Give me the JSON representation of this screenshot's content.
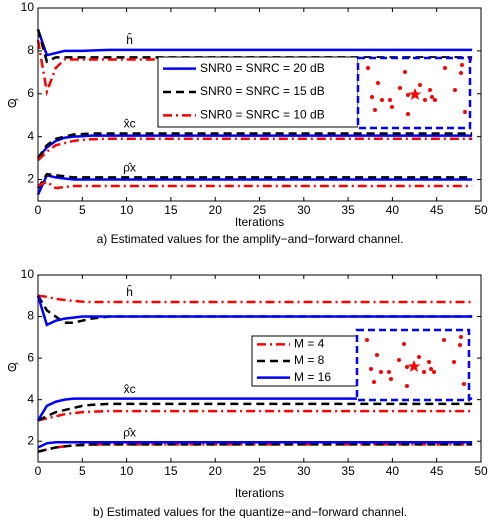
{
  "chart_data": [
    {
      "type": "line",
      "xlabel": "Iterations",
      "ylabel": "Θ̂",
      "caption": "a) Estimated values for the amplify−and−forward channel.",
      "x": [
        0,
        1,
        2,
        3,
        4,
        5,
        6,
        8,
        10,
        15,
        20,
        25,
        30,
        35,
        40,
        45,
        49
      ],
      "xlim": [
        0,
        50
      ],
      "ylim": [
        1,
        10
      ],
      "xticks": [
        0,
        5,
        10,
        15,
        20,
        25,
        30,
        35,
        40,
        45,
        50
      ],
      "yticks": [
        2,
        4,
        6,
        8,
        10
      ],
      "curve_labels": [
        "ĥ",
        "x̂c",
        "ρ̂x"
      ],
      "series": [
        {
          "name": "SNR0 = SNRC = 20 dB",
          "color": "#0000ff",
          "linestyle": "solid",
          "curves": [
            {
              "values": [
                9,
                7.8,
                7.9,
                8.0,
                8.0,
                8.0,
                8.02,
                8.05,
                8.05,
                8.05,
                8.05,
                8.05,
                8.05,
                8.05,
                8.05,
                8.05,
                8.05
              ]
            },
            {
              "values": [
                3,
                3.5,
                3.8,
                3.95,
                4.0,
                4.02,
                4.05,
                4.05,
                4.05,
                4.05,
                4.05,
                4.05,
                4.05,
                4.05,
                4.05,
                4.05,
                4.05
              ]
            },
            {
              "values": [
                1.3,
                2.2,
                2.1,
                2.05,
                2.0,
                2.0,
                2.0,
                2.0,
                2.0,
                2.0,
                2.0,
                2.0,
                2.0,
                2.0,
                2.0,
                2.0,
                2.0
              ]
            }
          ]
        },
        {
          "name": "SNR0 = SNRC = 15 dB",
          "color": "#000000",
          "linestyle": "dashed",
          "curves": [
            {
              "values": [
                9,
                7.5,
                7.7,
                7.7,
                7.7,
                7.7,
                7.7,
                7.7,
                7.7,
                7.7,
                7.7,
                7.7,
                7.7,
                7.7,
                7.7,
                7.7,
                7.7
              ]
            },
            {
              "values": [
                3,
                3.6,
                3.9,
                4.0,
                4.1,
                4.12,
                4.15,
                4.15,
                4.15,
                4.15,
                4.15,
                4.15,
                4.15,
                4.15,
                4.15,
                4.15,
                4.15
              ]
            },
            {
              "values": [
                1.6,
                2.25,
                2.2,
                2.15,
                2.1,
                2.1,
                2.1,
                2.1,
                2.1,
                2.1,
                2.1,
                2.1,
                2.1,
                2.1,
                2.1,
                2.1,
                2.1
              ]
            }
          ]
        },
        {
          "name": "SNR0 = SNRC = 10 dB",
          "color": "#ff0000",
          "linestyle": "dashdot",
          "curves": [
            {
              "values": [
                8.5,
                6.1,
                7.2,
                7.6,
                7.6,
                7.6,
                7.6,
                7.6,
                7.6,
                7.6,
                7.6,
                7.6,
                7.6,
                7.6,
                7.6,
                7.6,
                7.6
              ]
            },
            {
              "values": [
                2.9,
                3.3,
                3.6,
                3.7,
                3.8,
                3.85,
                3.88,
                3.9,
                3.9,
                3.9,
                3.9,
                3.9,
                3.9,
                3.9,
                3.9,
                3.9,
                3.9
              ]
            },
            {
              "values": [
                1.7,
                1.9,
                1.6,
                1.65,
                1.7,
                1.7,
                1.7,
                1.7,
                1.7,
                1.7,
                1.7,
                1.7,
                1.7,
                1.7,
                1.7,
                1.7,
                1.7
              ]
            }
          ]
        }
      ]
    },
    {
      "type": "line",
      "xlabel": "Iterations",
      "ylabel": "Θ̂",
      "caption": "b) Estimated values for the quantize−and−forward channel.",
      "x": [
        0,
        1,
        2,
        3,
        4,
        5,
        6,
        8,
        10,
        15,
        20,
        25,
        30,
        35,
        40,
        45,
        49
      ],
      "xlim": [
        0,
        50
      ],
      "ylim": [
        1,
        10
      ],
      "xticks": [
        0,
        5,
        10,
        15,
        20,
        25,
        30,
        35,
        40,
        45,
        50
      ],
      "yticks": [
        2,
        4,
        6,
        8,
        10
      ],
      "curve_labels": [
        "ĥ",
        "x̂c",
        "ρ̂x"
      ],
      "series": [
        {
          "name": "M = 4",
          "color": "#ff0000",
          "linestyle": "dashdot",
          "curves": [
            {
              "values": [
                9,
                8.95,
                8.85,
                8.8,
                8.75,
                8.72,
                8.7,
                8.7,
                8.7,
                8.7,
                8.7,
                8.7,
                8.7,
                8.7,
                8.7,
                8.7,
                8.7
              ]
            },
            {
              "values": [
                3,
                3.1,
                3.2,
                3.3,
                3.35,
                3.4,
                3.42,
                3.45,
                3.45,
                3.45,
                3.45,
                3.45,
                3.45,
                3.45,
                3.45,
                3.45,
                3.45
              ]
            },
            {
              "values": [
                1.5,
                1.6,
                1.7,
                1.75,
                1.8,
                1.82,
                1.84,
                1.85,
                1.85,
                1.85,
                1.85,
                1.85,
                1.85,
                1.85,
                1.85,
                1.85,
                1.85
              ]
            }
          ]
        },
        {
          "name": "M = 8",
          "color": "#000000",
          "linestyle": "dashed",
          "curves": [
            {
              "values": [
                9,
                8.3,
                8.0,
                7.7,
                7.7,
                7.8,
                7.9,
                8.0,
                8.0,
                8.0,
                8.0,
                8.0,
                8.0,
                8.0,
                8.0,
                8.0,
                8.0
              ]
            },
            {
              "values": [
                3,
                3.2,
                3.4,
                3.5,
                3.6,
                3.7,
                3.75,
                3.8,
                3.8,
                3.8,
                3.8,
                3.8,
                3.8,
                3.8,
                3.8,
                3.8,
                3.8
              ]
            },
            {
              "values": [
                1.5,
                1.6,
                1.7,
                1.75,
                1.8,
                1.82,
                1.84,
                1.85,
                1.85,
                1.85,
                1.85,
                1.85,
                1.85,
                1.85,
                1.85,
                1.85,
                1.85
              ]
            }
          ]
        },
        {
          "name": "M = 16",
          "color": "#0000ff",
          "linestyle": "solid",
          "curves": [
            {
              "values": [
                9,
                7.6,
                7.8,
                7.9,
                7.95,
                8.0,
                8.0,
                8.0,
                8.0,
                8.0,
                8.0,
                8.0,
                8.0,
                8.0,
                8.0,
                8.0,
                8.0
              ]
            },
            {
              "values": [
                3,
                3.7,
                3.9,
                4.0,
                4.05,
                4.05,
                4.05,
                4.05,
                4.05,
                4.05,
                4.05,
                4.05,
                4.05,
                4.05,
                4.05,
                4.05,
                4.05
              ]
            },
            {
              "values": [
                1.7,
                1.9,
                1.95,
                1.95,
                1.95,
                1.95,
                1.95,
                1.95,
                1.95,
                1.95,
                1.95,
                1.95,
                1.95,
                1.95,
                1.95,
                1.95,
                1.95
              ]
            }
          ]
        }
      ]
    }
  ]
}
